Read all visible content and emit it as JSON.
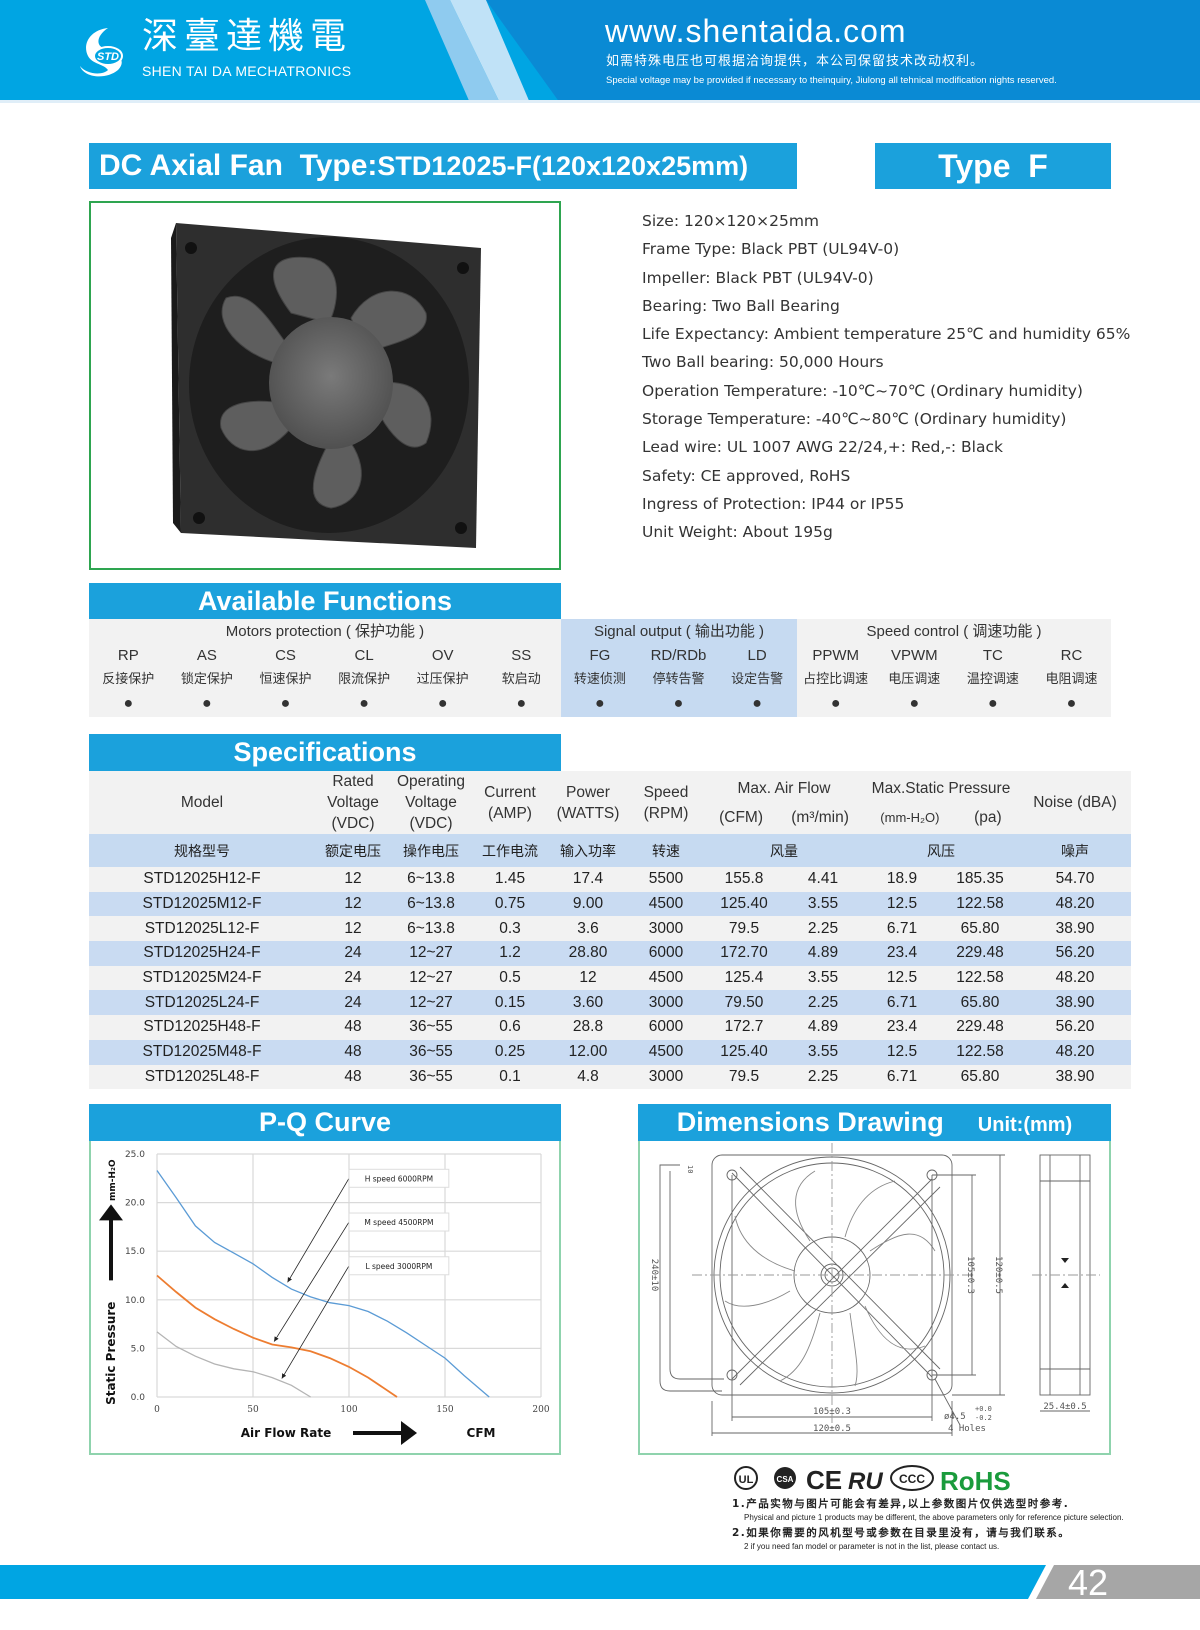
{
  "header": {
    "brand_cn": "深臺達機電",
    "brand_en": "SHEN TAI DA MECHATRONICS",
    "logo_text": "STD",
    "url": "www.shentaida.com",
    "notice_cn": "如需特殊电压也可根据洽询提供，本公司保留技术改动权利。",
    "notice_en": "Special voltage may be provided if necessary to theinquiry, Jiulong all tehnical modification nights reserved."
  },
  "title": {
    "prefix": "DC Axial Fan  Type:",
    "model": "STD12025-F(120x120x25mm)",
    "type_badge": "Type  F"
  },
  "specs_list": [
    "Size: 120×120×25mm",
    "Frame Type: Black PBT (UL94V-0)",
    "Impeller: Black PBT (UL94V-0)",
    "Bearing: Two Ball Bearing",
    "Life Expectancy: Ambient temperature 25℃ and humidity 65%",
    "Two Ball bearing: 50,000 Hours",
    "Operation Temperature: -10℃~70℃ (Ordinary humidity)",
    "Storage Temperature: -40℃~80℃ (Ordinary humidity)",
    "Lead wire: UL 1007 AWG 22/24,+: Red,-: Black",
    "Safety: CE approved, RoHS",
    "Ingress of Protection: IP44 or IP55",
    "Unit Weight: About 195g"
  ],
  "functions": {
    "title": "Available Functions",
    "groups": [
      "Motors protection ( 保护功能 )",
      "Signal output ( 输出功能 )",
      "Speed control ( 调速功能 )"
    ],
    "items": [
      {
        "code": "RP",
        "cn": "反接保护",
        "mark": "●"
      },
      {
        "code": "AS",
        "cn": "锁定保护",
        "mark": "●"
      },
      {
        "code": "CS",
        "cn": "恒速保护",
        "mark": "●"
      },
      {
        "code": "CL",
        "cn": "限流保护",
        "mark": "●"
      },
      {
        "code": "OV",
        "cn": "过压保护",
        "mark": "●"
      },
      {
        "code": "SS",
        "cn": "软启动",
        "mark": "●"
      },
      {
        "code": "FG",
        "cn": "转速侦测",
        "mark": "●"
      },
      {
        "code": "RD/RDb",
        "cn": "停转告警",
        "mark": "●"
      },
      {
        "code": "LD",
        "cn": "设定告警",
        "mark": "●"
      },
      {
        "code": "PPWM",
        "cn": "占控比调速",
        "mark": "●"
      },
      {
        "code": "VPWM",
        "cn": "电压调速",
        "mark": "●"
      },
      {
        "code": "TC",
        "cn": "温控调速",
        "mark": "●"
      },
      {
        "code": "RC",
        "cn": "电阻调速",
        "mark": "●"
      }
    ]
  },
  "specifications": {
    "title": "Specifications",
    "headers": [
      "Model",
      "Rated Voltage (VDC)",
      "Operating Voltage (VDC)",
      "Current (AMP)",
      "Power (WATTS)",
      "Speed (RPM)",
      "Max. Air Flow",
      "(CFM)",
      "(m³/min)",
      "Max.Static Pressure",
      "(mm-H₂O)",
      "(pa)",
      "Noise (dBA)"
    ],
    "headers_cn": [
      "规格型号",
      "额定电压",
      "操作电压",
      "工作电流",
      "输入功率",
      "转速",
      "风量",
      "风压",
      "噪声"
    ],
    "rows": [
      [
        "STD12025H12-F",
        "12",
        "6~13.8",
        "1.45",
        "17.4",
        "5500",
        "155.8",
        "4.41",
        "18.9",
        "185.35",
        "54.70"
      ],
      [
        "STD12025M12-F",
        "12",
        "6~13.8",
        "0.75",
        "9.00",
        "4500",
        "125.40",
        "3.55",
        "12.5",
        "122.58",
        "48.20"
      ],
      [
        "STD12025L12-F",
        "12",
        "6~13.8",
        "0.3",
        "3.6",
        "3000",
        "79.5",
        "2.25",
        "6.71",
        "65.80",
        "38.90"
      ],
      [
        "STD12025H24-F",
        "24",
        "12~27",
        "1.2",
        "28.80",
        "6000",
        "172.70",
        "4.89",
        "23.4",
        "229.48",
        "56.20"
      ],
      [
        "STD12025M24-F",
        "24",
        "12~27",
        "0.5",
        "12",
        "4500",
        "125.4",
        "3.55",
        "12.5",
        "122.58",
        "48.20"
      ],
      [
        "STD12025L24-F",
        "24",
        "12~27",
        "0.15",
        "3.60",
        "3000",
        "79.50",
        "2.25",
        "6.71",
        "65.80",
        "38.90"
      ],
      [
        "STD12025H48-F",
        "48",
        "36~55",
        "0.6",
        "28.8",
        "6000",
        "172.7",
        "4.89",
        "23.4",
        "229.48",
        "56.20"
      ],
      [
        "STD12025M48-F",
        "48",
        "36~55",
        "0.25",
        "12.00",
        "4500",
        "125.40",
        "3.55",
        "12.5",
        "122.58",
        "48.20"
      ],
      [
        "STD12025L48-F",
        "48",
        "36~55",
        "0.1",
        "4.8",
        "3000",
        "79.5",
        "2.25",
        "6.71",
        "65.80",
        "38.90"
      ]
    ]
  },
  "pq": {
    "title": "P-Q Curve"
  },
  "chart_data": {
    "type": "line",
    "title": "",
    "xlabel": "Air  Flow  Rate",
    "xunit": "CFM",
    "ylabel": "Static  Pressure",
    "yunit": "mm-H₂O",
    "xlim": [
      0,
      200
    ],
    "ylim": [
      0,
      25
    ],
    "xticks": [
      "0",
      "50",
      "100",
      "150",
      "200"
    ],
    "yticks": [
      "0.0",
      "5.0",
      "10.0",
      "15.0",
      "20.0",
      "25.0"
    ],
    "grid": true,
    "series": [
      {
        "name": "H  speed  6000RPM",
        "color": "#5b9bd5",
        "x": [
          0,
          10,
          20,
          30,
          40,
          50,
          60,
          70,
          80,
          90,
          100,
          110,
          120,
          130,
          140,
          150,
          160,
          173
        ],
        "y": [
          23.3,
          20.5,
          17.6,
          15.9,
          14.8,
          13.7,
          12.3,
          11.1,
          10.3,
          9.7,
          9.4,
          8.8,
          7.8,
          6.6,
          5.3,
          4.0,
          2.2,
          0
        ]
      },
      {
        "name": "M  speed  4500RPM",
        "color": "#ed7d31",
        "x": [
          0,
          10,
          20,
          30,
          40,
          50,
          60,
          70,
          80,
          90,
          100,
          110,
          125
        ],
        "y": [
          12.5,
          10.8,
          9.2,
          8.0,
          7.0,
          6.1,
          5.4,
          5.1,
          4.7,
          4.0,
          3.1,
          2.0,
          0
        ]
      },
      {
        "name": "L  speed  3000RPM",
        "color": "#b4b4b4",
        "x": [
          0,
          10,
          20,
          30,
          40,
          50,
          60,
          70,
          80
        ],
        "y": [
          6.7,
          5.2,
          4.2,
          3.4,
          2.9,
          2.6,
          2.0,
          1.2,
          0
        ]
      }
    ]
  },
  "dimensions": {
    "title": "Dimensions Drawing",
    "unit": "Unit:(mm)",
    "labels": {
      "w_inner": "105±0.3",
      "w_outer": "120±0.5",
      "h_inner": "105±0.3",
      "h_outer": "120±0.5",
      "lead": "240±10",
      "depth": "25.4±0.5",
      "hole": "ø4.5",
      "hole_tol_plus": "+0.0",
      "hole_tol_minus": "-0.2",
      "holes": "4  Holes",
      "strip": "10"
    }
  },
  "certs": [
    "UL",
    "CSA",
    "CE",
    "RU",
    "CCC",
    "RoHS"
  ],
  "notes": [
    {
      "cn": "1.产品实物与图片可能会有差异,以上参数图片仅供选型时参考.",
      "en": "Physical and picture 1 products may be different, the above parameters only for reference picture selection."
    },
    {
      "cn": "2.如果你需要的风机型号或参数在目录里没有，请与我们联系。",
      "en": "2 if you need fan model or parameter is not in the list, please contact us."
    }
  ],
  "page_number": "42",
  "colors": {
    "brand_blue": "#1ba1dc",
    "header_blue": "#00a5e3",
    "header_dark": "#0a8ad4",
    "row_blue": "#c9dbf2",
    "rohs_green": "#1a9b3c",
    "footer_grey": "#a6a6a6"
  }
}
